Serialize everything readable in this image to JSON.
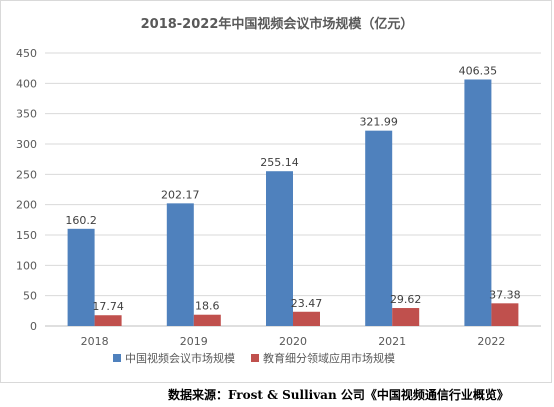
{
  "source_note": "数据来源：Frost & Sullivan 公司《中国视频通信行业概览》",
  "chart_data": {
    "type": "bar",
    "title": "2018-2022年中国视频会议市场规模（亿元）",
    "categories": [
      "2018",
      "2019",
      "2020",
      "2021",
      "2022"
    ],
    "series": [
      {
        "name": "中国视频会议市场规模",
        "color": "#4f81bd",
        "values": [
          160.2,
          202.17,
          255.14,
          321.99,
          406.35
        ],
        "labels": [
          "160.2",
          "202.17",
          "255.14",
          "321.99",
          "406.35"
        ]
      },
      {
        "name": "教育细分领域应用市场规模",
        "color": "#c0504d",
        "values": [
          17.74,
          18.6,
          23.47,
          29.62,
          37.38
        ],
        "labels": [
          "17.74",
          "18.6",
          "23.47",
          "29.62",
          "37.38"
        ]
      }
    ],
    "ylim": [
      0,
      450
    ],
    "yticks": [
      0,
      50,
      100,
      150,
      200,
      250,
      300,
      350,
      400,
      450
    ],
    "grid": true,
    "legend": "bottom"
  }
}
